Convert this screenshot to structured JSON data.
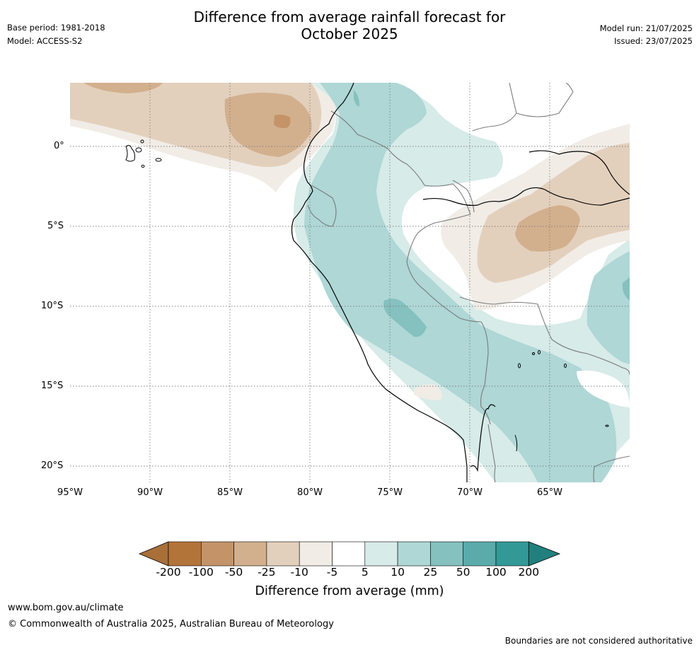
{
  "header": {
    "title_line1": "Difference from average rainfall forecast for",
    "title_line2": "October 2025",
    "base_period": "Base period: 1981-2018",
    "model": "Model: ACCESS-S2",
    "model_run": "Model run: 21/07/2025",
    "issued": "Issued: 23/07/2025"
  },
  "axes": {
    "lat_ticks": [
      "0°",
      "5°S",
      "10°S",
      "15°S",
      "20°S"
    ],
    "lon_ticks": [
      "95°W",
      "90°W",
      "85°W",
      "80°W",
      "75°W",
      "70°W",
      "65°W"
    ]
  },
  "colorbar": {
    "labels": [
      "-200",
      "-100",
      "-50",
      "-25",
      "-10",
      "-5",
      "5",
      "10",
      "25",
      "50",
      "100",
      "200"
    ],
    "colors": [
      "#a86f39",
      "#b3743a",
      "#c49468",
      "#d2b08e",
      "#e3d0bc",
      "#f1ece6",
      "#ffffff",
      "#d7ebe9",
      "#aed7d6",
      "#84c1bf",
      "#5aabaa",
      "#329996",
      "#21807d"
    ],
    "title": "Difference from average (mm)"
  },
  "footer": {
    "url": "www.bom.gov.au/climate",
    "copyright": "© Commonwealth of Australia 2025, Australian Bureau of Meteorology",
    "disclaimer": "Boundaries are not considered authoritative"
  },
  "legend_colors": {
    "dry_light": "#f1ece6",
    "dry_mid": "#e3d0bc",
    "dry_strong": "#d2b08e",
    "dry_max": "#c49468",
    "wet_light": "#d7ebe9",
    "wet_mid": "#aed7d6",
    "wet_strong": "#84c1bf"
  }
}
